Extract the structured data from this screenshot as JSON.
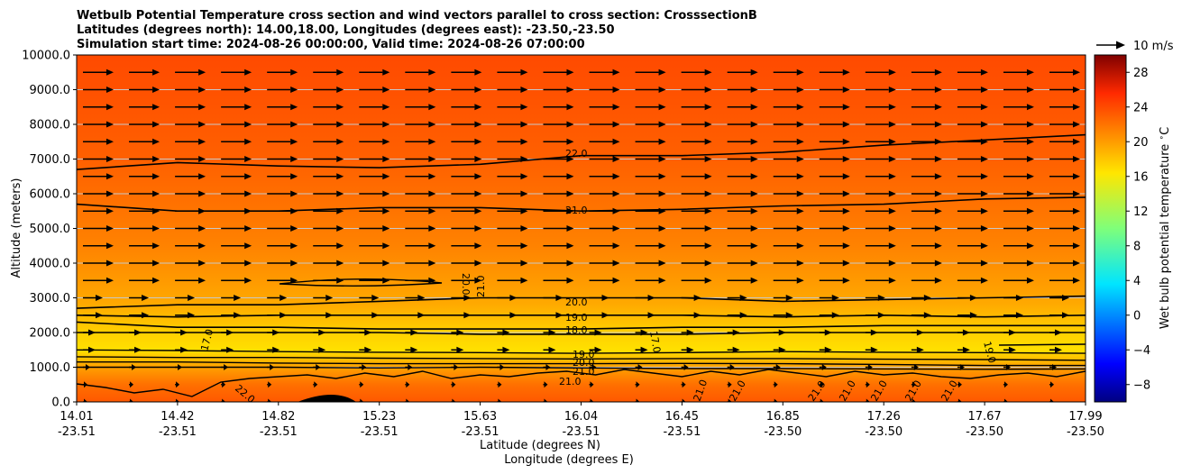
{
  "chart_data": {
    "type": "heatmap",
    "title": [
      "Wetbulb Potential Temperature cross section and wind vectors parallel to cross section: CrosssectionB",
      "Latitudes (degrees north): 14.00,18.00, Longitudes (degrees east): -23.50,-23.50",
      "Simulation start time: 2024-08-26 00:00:00, Valid time: 2024-08-26 07:00:00"
    ],
    "ylabel": "Altitude (meters)",
    "xlabel_lat": "Latitude (degrees N)",
    "xlabel_lon": "Longitude (degrees E)",
    "ylim": [
      0,
      10000
    ],
    "yticks": [
      "0.0",
      "1000.0",
      "2000.0",
      "3000.0",
      "4000.0",
      "5000.0",
      "6000.0",
      "7000.0",
      "8000.0",
      "9000.0",
      "10000.0"
    ],
    "xticks_lat": [
      "14.01",
      "14.42",
      "14.82",
      "15.23",
      "15.63",
      "16.04",
      "16.45",
      "16.85",
      "17.26",
      "17.67",
      "17.99"
    ],
    "xticks_lon": [
      "-23.51",
      "-23.51",
      "-23.51",
      "-23.51",
      "-23.51",
      "-23.51",
      "-23.51",
      "-23.50",
      "-23.50",
      "-23.50",
      "-23.50"
    ],
    "grid": "horizontal",
    "colorbar": {
      "label": "Wet bulb potential temperature $^\\circ$C",
      "range": [
        -10,
        30
      ],
      "ticks": [
        "−8",
        "−4",
        "0",
        "4",
        "8",
        "12",
        "16",
        "20",
        "24",
        "28"
      ],
      "colormap": "jet"
    },
    "quiver_key": "10 m/s",
    "contour_labels": [
      "22.0",
      "21.0",
      "21.0",
      "20.0",
      "20.0",
      "19.0",
      "18.0",
      "17.0",
      "17.0",
      "19.0",
      "20.0",
      "21.0",
      "21.0",
      "22.0",
      "21.0",
      "21.0",
      "21.0",
      "21.0",
      "21.0",
      "21.0",
      "21.0",
      "19.0"
    ],
    "contour_lines": [
      {
        "level": 22.0,
        "z": [
          6700,
          6900,
          6800,
          6750,
          6850,
          7100,
          7100,
          7200,
          7400,
          7550,
          7700
        ]
      },
      {
        "level": 21.0,
        "z": [
          5700,
          5500,
          5500,
          5600,
          5600,
          5500,
          5550,
          5650,
          5700,
          5850,
          5900
        ]
      },
      {
        "level": 20.0,
        "z": [
          2700,
          2800,
          2800,
          2900,
          3000,
          3000,
          3000,
          2900,
          2950,
          3000,
          3050
        ]
      },
      {
        "level": 19.0,
        "z": [
          2500,
          2450,
          2500,
          2500,
          2500,
          2500,
          2500,
          2450,
          2500,
          2450,
          2500
        ]
      },
      {
        "level": 18.0,
        "z": [
          2300,
          2150,
          2150,
          2100,
          2100,
          2100,
          2150,
          2150,
          2200,
          2200,
          2200
        ]
      },
      {
        "level": 17.0,
        "z": [
          2000,
          2000,
          2000,
          2000,
          1950,
          1950,
          1950,
          2000,
          2000,
          2000,
          2000
        ]
      }
    ]
  }
}
